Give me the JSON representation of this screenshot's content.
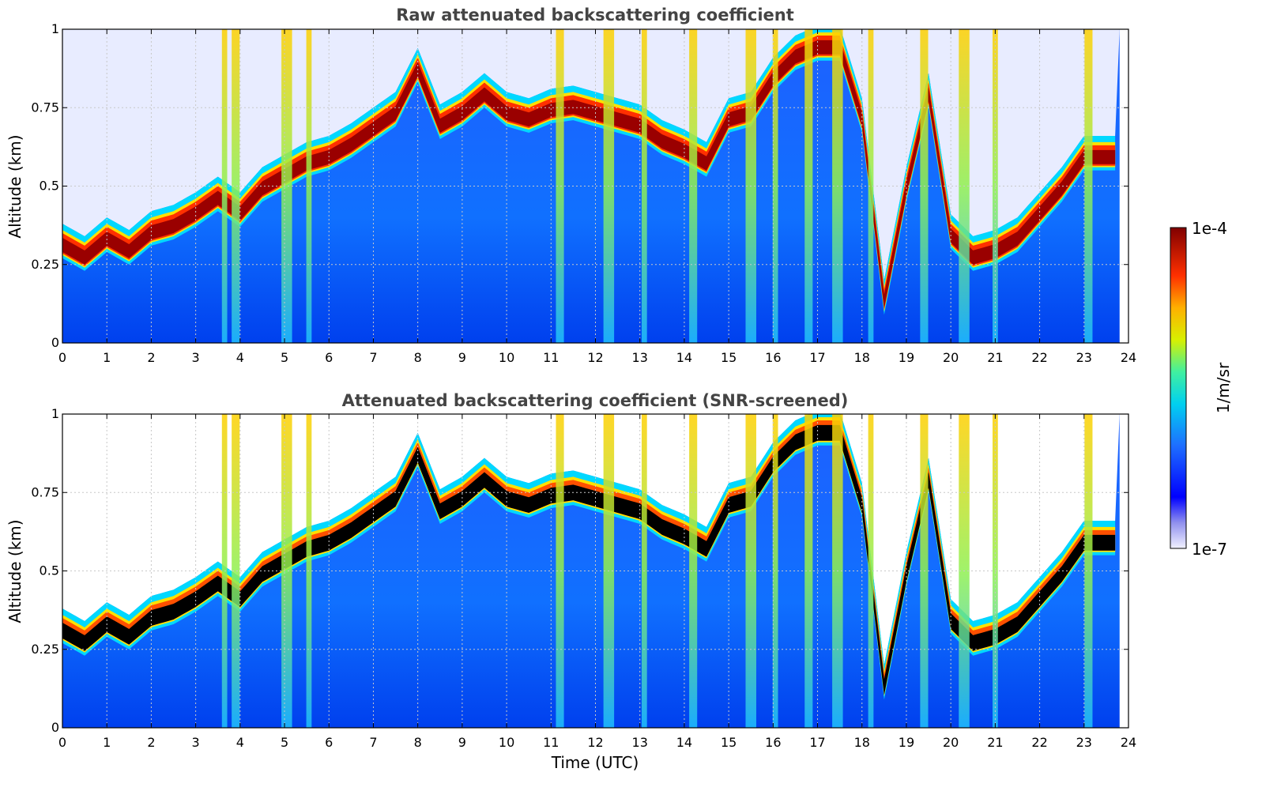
{
  "chart_data": [
    {
      "type": "heatmap",
      "title": "Raw attenuated backscattering coefficient",
      "xlabel": "",
      "ylabel": "Altitude (km)",
      "xlim": [
        0,
        24
      ],
      "ylim": [
        0,
        1
      ],
      "x_ticks": [
        "0",
        "1",
        "2",
        "3",
        "4",
        "5",
        "6",
        "7",
        "8",
        "9",
        "10",
        "11",
        "12",
        "13",
        "14",
        "15",
        "16",
        "17",
        "18",
        "19",
        "20",
        "21",
        "22",
        "23",
        "24"
      ],
      "y_ticks": [
        "0",
        "0.25",
        "0.5",
        "0.75",
        "1"
      ],
      "grid": true,
      "data_extent_x": [
        0,
        23.8
      ],
      "cloud_base_km": [
        [
          0,
          0.32
        ],
        [
          0.5,
          0.28
        ],
        [
          1,
          0.34
        ],
        [
          1.5,
          0.3
        ],
        [
          2,
          0.36
        ],
        [
          2.5,
          0.38
        ],
        [
          3,
          0.42
        ],
        [
          3.5,
          0.47
        ],
        [
          4,
          0.42
        ],
        [
          4.5,
          0.5
        ],
        [
          5,
          0.54
        ],
        [
          5.5,
          0.58
        ],
        [
          6,
          0.6
        ],
        [
          6.5,
          0.64
        ],
        [
          7,
          0.69
        ],
        [
          7.5,
          0.74
        ],
        [
          8,
          0.88
        ],
        [
          8.5,
          0.7
        ],
        [
          9,
          0.74
        ],
        [
          9.5,
          0.8
        ],
        [
          10,
          0.74
        ],
        [
          10.5,
          0.72
        ],
        [
          11,
          0.75
        ],
        [
          11.5,
          0.76
        ],
        [
          12,
          0.74
        ],
        [
          12.5,
          0.72
        ],
        [
          13,
          0.7
        ],
        [
          13.5,
          0.65
        ],
        [
          14,
          0.62
        ],
        [
          14.5,
          0.58
        ],
        [
          15,
          0.72
        ],
        [
          15.5,
          0.74
        ],
        [
          16,
          0.85
        ],
        [
          16.5,
          0.92
        ],
        [
          17,
          0.95
        ],
        [
          17.5,
          0.95
        ],
        [
          18,
          0.72
        ],
        [
          18.5,
          0.14
        ],
        [
          19,
          0.5
        ],
        [
          19.5,
          0.8
        ],
        [
          20,
          0.35
        ],
        [
          20.5,
          0.28
        ],
        [
          21,
          0.3
        ],
        [
          21.5,
          0.34
        ],
        [
          22,
          0.42
        ],
        [
          22.5,
          0.5
        ],
        [
          23,
          0.6
        ],
        [
          23.5,
          0.6
        ],
        [
          23.8,
          0.6
        ]
      ],
      "vertical_plumes_utc": [
        3.65,
        3.9,
        5.05,
        5.55,
        11.2,
        12.3,
        13.1,
        14.2,
        15.5,
        16.05,
        16.8,
        17.45,
        18.2,
        19.4,
        20.3,
        21.0,
        23.1
      ]
    },
    {
      "type": "heatmap",
      "title": "Attenuated backscattering coefficient (SNR-screened)",
      "xlabel": "Time (UTC)",
      "ylabel": "Altitude (km)",
      "xlim": [
        0,
        24
      ],
      "ylim": [
        0,
        1
      ],
      "x_ticks": [
        "0",
        "1",
        "2",
        "3",
        "4",
        "5",
        "6",
        "7",
        "8",
        "9",
        "10",
        "11",
        "12",
        "13",
        "14",
        "15",
        "16",
        "17",
        "18",
        "19",
        "20",
        "21",
        "22",
        "23",
        "24"
      ],
      "y_ticks": [
        "0",
        "0.25",
        "0.5",
        "0.75",
        "1"
      ],
      "grid": true,
      "saturated_values_shown_as": "black",
      "screened_region_shown_as": "white"
    }
  ],
  "colorbar": {
    "label": "1/m/sr",
    "max_label": "1e-4",
    "min_label": "1e-7",
    "scale": "log",
    "range": [
      1e-07,
      0.0001
    ],
    "colormap": "jet"
  },
  "colors": {
    "title": "#444444",
    "grid": "#c8c8c8",
    "saturated": "#000000"
  }
}
